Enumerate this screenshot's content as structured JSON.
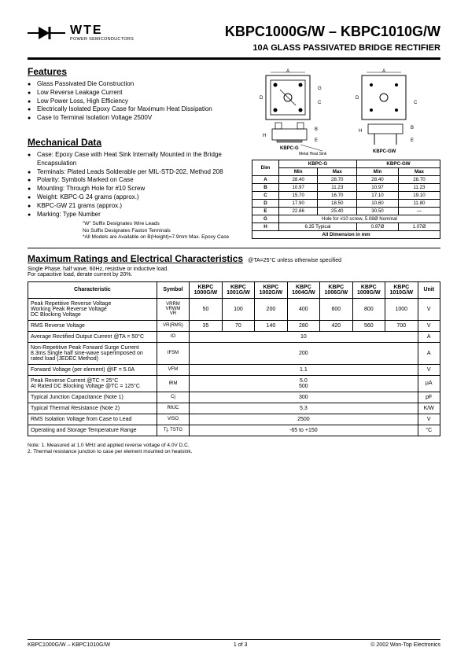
{
  "logo": {
    "brand": "WTE",
    "sub": "POWER SEMICONDUCTORS"
  },
  "title": "KBPC1000G/W – KBPC1010G/W",
  "subtitle": "10A GLASS PASSIVATED BRIDGE RECTIFIER",
  "features": {
    "heading": "Features",
    "items": [
      "Glass Passivated Die Construction",
      "Low Reverse Leakage Current",
      "Low Power Loss, High Efficiency",
      "Electrically Isolated Epoxy Case for Maximum Heat Dissipation",
      "Case to Terminal Isolation Voltage 2500V"
    ]
  },
  "mechanical": {
    "heading": "Mechanical Data",
    "items": [
      "Case: Epoxy Case with Heat Sink Internally Mounted in the Bridge Encapsulation",
      "Terminals: Plated Leads Solderable per MIL-STD-202, Method 208",
      "Polarity: Symbols Marked on Case",
      "Mounting: Through Hole for #10 Screw",
      "Weight:    KBPC-G         24 grams (approx.)",
      "               KBPC-GW     21 grams (approx.)",
      "Marking: Type Number"
    ],
    "notes": [
      "\"W\"  Suffix Designates Wire Leads",
      "No Suffix Designates Faston Terminals",
      "*All Models are Available on B(Height)=7.9mm Max. Epoxy Case"
    ]
  },
  "diagram": {
    "label_left": "KBPC-G",
    "label_right": "KBPC-GW",
    "heatsink": "Metal Heat Sink",
    "letters": [
      "A",
      "B",
      "C",
      "D",
      "E",
      "G",
      "H"
    ]
  },
  "dims": {
    "headers": {
      "dim": "Dim",
      "g1": "KBPC-G",
      "g2": "KBPC-GW",
      "min": "Min",
      "max": "Max"
    },
    "rows": [
      {
        "d": "A",
        "g1min": "28.40",
        "g1max": "28.70",
        "g2min": "28.40",
        "g2max": "28.70"
      },
      {
        "d": "B",
        "g1min": "10.97",
        "g1max": "11.23",
        "g2min": "10.97",
        "g2max": "11.23"
      },
      {
        "d": "C",
        "g1min": "15.70",
        "g1max": "16.70",
        "g2min": "17.10",
        "g2max": "19.10"
      },
      {
        "d": "D",
        "g1min": "17.90",
        "g1max": "18.50",
        "g2min": "10.60",
        "g2max": "11.80"
      },
      {
        "d": "E",
        "g1min": "22.86",
        "g1max": "25.40",
        "g2min": "30.50",
        "g2max": "—"
      }
    ],
    "row_g": {
      "d": "G",
      "text": "Hole for #10 screw, 5.08Ø Nominal"
    },
    "row_h": {
      "d": "H",
      "g1": "6.35 Typical",
      "g2min": "0.97Ø",
      "g2max": "1.07Ø"
    },
    "footer": "All Dimension in mm"
  },
  "ratings": {
    "heading": "Maximum Ratings and Electrical Characteristics",
    "cond": "@TA=25°C unless otherwise specified",
    "subnote": "Single Phase, half wave, 60Hz, resistive or inductive load.\nFor capacitive load, derate current by 20%.",
    "cols": {
      "char": "Characteristic",
      "sym": "Symbol",
      "p0": "KBPC 1000G/W",
      "p1": "KBPC 1001G/W",
      "p2": "KBPC 1002G/W",
      "p3": "KBPC 1004G/W",
      "p4": "KBPC 1006G/W",
      "p5": "KBPC 1008G/W",
      "p6": "KBPC 1010G/W",
      "unit": "Unit"
    },
    "rows": [
      {
        "c": "Peak Repetitive Reverse Voltage\nWorking Peak Reverse Voltage\nDC Blocking Voltage",
        "s": "VRRM\nVRWM\nVR",
        "v": [
          "50",
          "100",
          "200",
          "400",
          "600",
          "800",
          "1000"
        ],
        "u": "V"
      },
      {
        "c": "RMS Reverse Voltage",
        "s": "VR(RMS)",
        "v": [
          "35",
          "70",
          "140",
          "280",
          "420",
          "560",
          "700"
        ],
        "u": "V"
      },
      {
        "c": "Average Rectified Output Current @TA = 50°C",
        "s": "IO",
        "span": "10",
        "u": "A"
      },
      {
        "c": "Non-Repetitive Peak Forward Surge Current 8.3ms Single half sine-wave superimposed on rated load (JEDEC Method)",
        "s": "IFSM",
        "span": "200",
        "u": "A"
      },
      {
        "c": "Forward Voltage (per element)          @IF = 5.0A",
        "s": "VFM",
        "span": "1.1",
        "u": "V"
      },
      {
        "c": "Peak Reverse Current               @TC = 25°C\nAt Rated DC Blocking Voltage    @TC = 125°C",
        "s": "IRM",
        "span": "5.0\n500",
        "u": "µA"
      },
      {
        "c": "Typical Junction Capacitance (Note 1)",
        "s": "Cj",
        "span": "300",
        "u": "pF"
      },
      {
        "c": "Typical Thermal Resistance (Note 2)",
        "s": "RθJC",
        "span": "5.3",
        "u": "K/W"
      },
      {
        "c": "RMS Isolation Voltage from Case to Lead",
        "s": "VISO",
        "span": "2500",
        "u": "V"
      },
      {
        "c": "Operating and Storage Temperature Range",
        "s": "Tj, TSTG",
        "span": "-65 to +150",
        "u": "°C"
      }
    ]
  },
  "notes": "Note:  1. Measured at 1.0 MHz and applied reverse voltage of 4.0V D.C.\n          2. Thermal resistance junction to case per element mounted on heatsink.",
  "footer": {
    "left": "KBPC1000G/W – KBPC1010G/W",
    "center": "1 of 3",
    "right": "© 2002 Won-Top Electronics"
  }
}
